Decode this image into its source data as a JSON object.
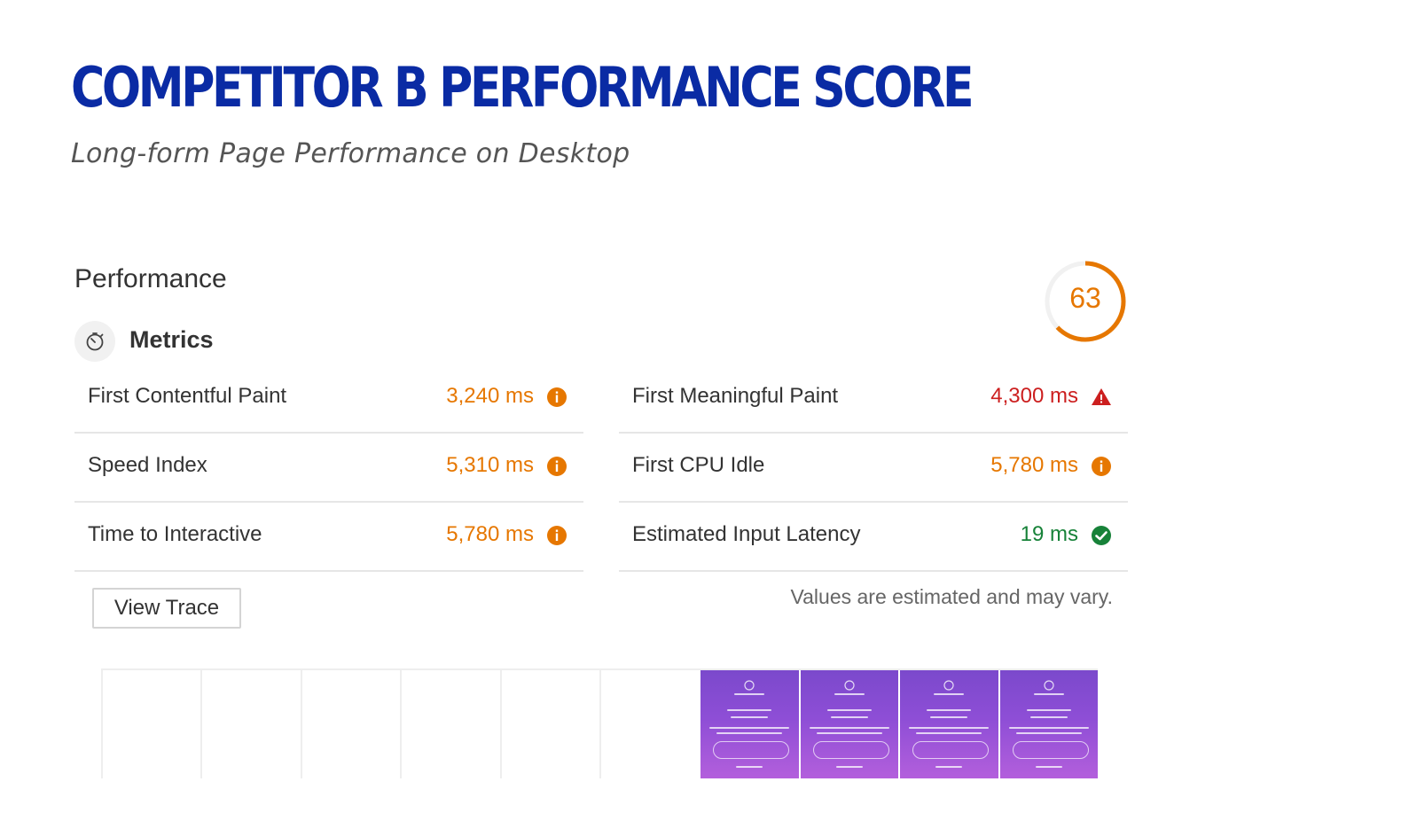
{
  "page": {
    "title": "COMPETITOR B PERFORMANCE SCORE",
    "subtitle": "Long-form Page Performance on Desktop"
  },
  "performance": {
    "section_title": "Performance",
    "score": "63",
    "score_fraction": 0.63,
    "score_color": "#e67700",
    "metrics_label": "Metrics",
    "metrics_icon": "stopwatch-icon",
    "metrics": {
      "left": [
        {
          "name": "First Contentful Paint",
          "value": "3,240 ms",
          "status": "average",
          "icon": "info-circle-icon",
          "color": "#e67700"
        },
        {
          "name": "Speed Index",
          "value": "5,310 ms",
          "status": "average",
          "icon": "info-circle-icon",
          "color": "#e67700"
        },
        {
          "name": "Time to Interactive",
          "value": "5,780 ms",
          "status": "average",
          "icon": "info-circle-icon",
          "color": "#e67700"
        }
      ],
      "right": [
        {
          "name": "First Meaningful Paint",
          "value": "4,300 ms",
          "status": "fail",
          "icon": "warning-triangle-icon",
          "color": "#cc1f1f"
        },
        {
          "name": "First CPU Idle",
          "value": "5,780 ms",
          "status": "average",
          "icon": "info-circle-icon",
          "color": "#e67700"
        },
        {
          "name": "Estimated Input Latency",
          "value": "19 ms",
          "status": "pass",
          "icon": "check-circle-icon",
          "color": "#178239"
        }
      ]
    },
    "view_trace_label": "View Trace",
    "estimate_note": "Values are estimated and may vary.",
    "filmstrip": {
      "frame_count": 10,
      "loaded_from_index": 6
    }
  }
}
